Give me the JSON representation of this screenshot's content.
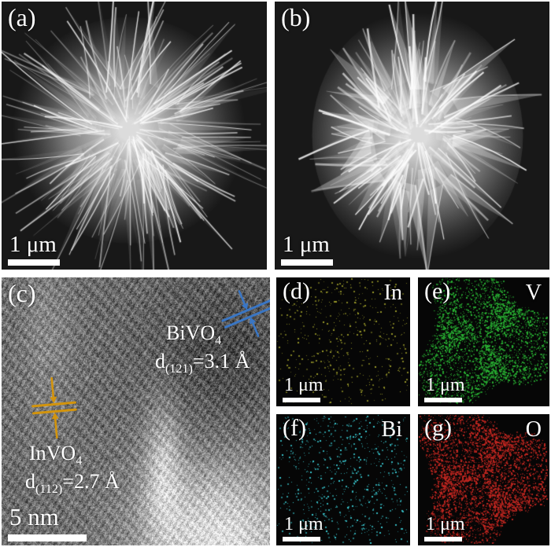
{
  "panels": {
    "a": {
      "label": "(a)",
      "scalebar": "1 μm"
    },
    "b": {
      "label": "(b)",
      "scalebar": "1 μm"
    },
    "c": {
      "label": "(c)",
      "scalebar": "5 nm",
      "bivo4": {
        "name_main": "BiVO",
        "name_sub": "4",
        "d_main": "d",
        "d_sub": "(121)",
        "d_rest": "=3.1 Å",
        "marker_color": "#3a76c4"
      },
      "invo4": {
        "name_main": "InVO",
        "name_sub": "4",
        "d_main": "d",
        "d_sub": "(112)",
        "d_rest": "=2.7 Å",
        "marker_color": "#d3940c"
      }
    },
    "d": {
      "label": "(d)",
      "element": "In",
      "scalebar": "1 μm",
      "dot_color": "#9a9a28"
    },
    "e": {
      "label": "(e)",
      "element": "V",
      "scalebar": "1 μm",
      "dot_color": "#28b232"
    },
    "f": {
      "label": "(f)",
      "element": "Bi",
      "scalebar": "1 μm",
      "dot_color": "#38c6ce"
    },
    "g": {
      "label": "(g)",
      "element": "O",
      "scalebar": "1 μm",
      "dot_color": "#c32620"
    }
  },
  "colors": {
    "page_bg": "#ffffff",
    "sem_bg": "#181818",
    "eds_bg": "#060606",
    "label_text": "#ffffff"
  }
}
